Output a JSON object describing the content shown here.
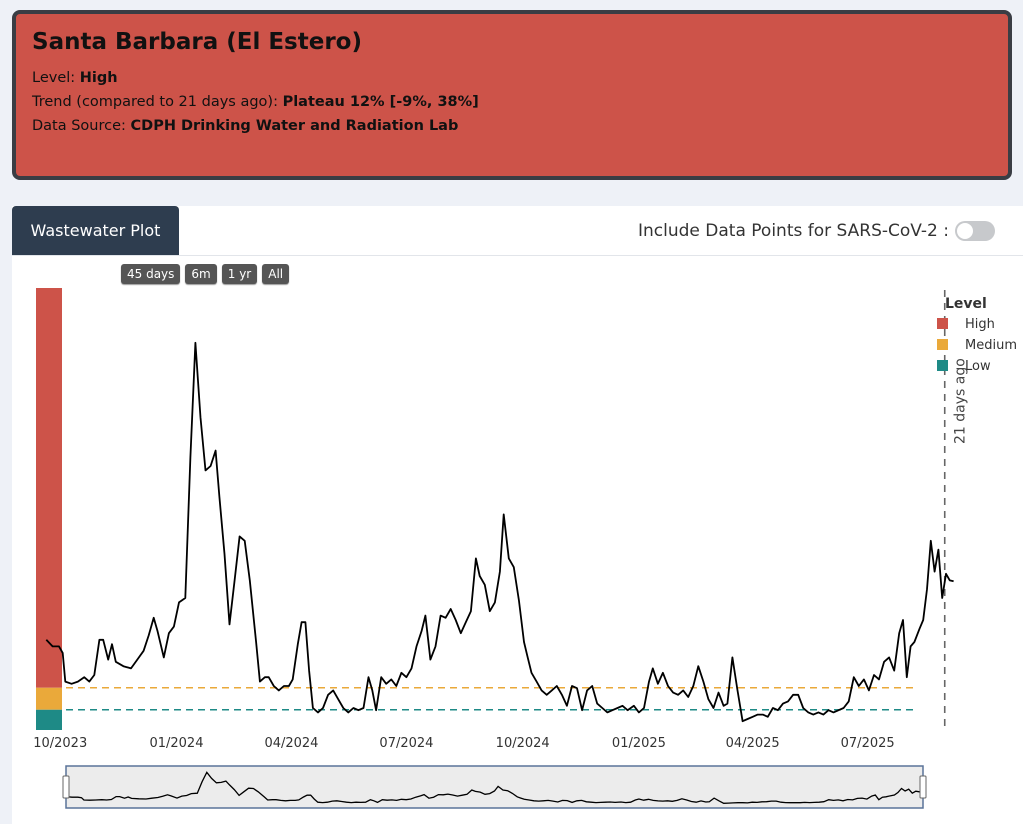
{
  "header": {
    "title": "Santa Barbara (El Estero)",
    "level_label": "Level: ",
    "level_value": "High",
    "trend_label": "Trend (compared to 21 days ago): ",
    "trend_value": "Plateau 12% [-9%, 38%]",
    "source_label": "Data Source: ",
    "source_value": "CDPH Drinking Water and Radiation Lab"
  },
  "tabs": {
    "wastewater": "Wastewater Plot"
  },
  "toggle": {
    "label": "Include Data Points for SARS-CoV-2 :",
    "on": false
  },
  "range_buttons": [
    "45 days",
    "6m",
    "1 yr",
    "All"
  ],
  "colors": {
    "high": "#cd5349",
    "medium": "#eaa93a",
    "low": "#1e8a86",
    "line": "#000000"
  },
  "chart_data": {
    "type": "line",
    "title": "",
    "xlabel": "",
    "ylabel": "",
    "x_ticks": [
      "10/2023",
      "01/2024",
      "04/2024",
      "07/2024",
      "10/2024",
      "01/2025",
      "04/2025",
      "07/2025"
    ],
    "x_range": [
      "2023-09-15",
      "2025-09-20"
    ],
    "y_range": [
      0,
      1
    ],
    "grid": false,
    "legend": {
      "title": "Level",
      "position": "top-right",
      "entries": [
        {
          "name": "High",
          "color": "#cd5349"
        },
        {
          "name": "Medium",
          "color": "#eaa93a"
        },
        {
          "name": "Low",
          "color": "#1e8a86"
        }
      ]
    },
    "thresholds": {
      "medium": 0.096,
      "low": 0.046
    },
    "annotation": {
      "text": "21 days ago",
      "x": "2025-08-31"
    },
    "series": [
      {
        "points": [
          [
            "2023-09-20",
            0.205
          ],
          [
            "2023-09-25",
            0.19
          ],
          [
            "2023-09-30",
            0.19
          ],
          [
            "2023-10-03",
            0.175
          ],
          [
            "2023-10-05",
            0.11
          ],
          [
            "2023-10-10",
            0.105
          ],
          [
            "2023-10-15",
            0.11
          ],
          [
            "2023-10-20",
            0.12
          ],
          [
            "2023-10-24",
            0.11
          ],
          [
            "2023-10-28",
            0.125
          ],
          [
            "2023-11-01",
            0.205
          ],
          [
            "2023-11-04",
            0.205
          ],
          [
            "2023-11-08",
            0.16
          ],
          [
            "2023-11-11",
            0.195
          ],
          [
            "2023-11-14",
            0.155
          ],
          [
            "2023-11-20",
            0.145
          ],
          [
            "2023-11-26",
            0.14
          ],
          [
            "2023-12-01",
            0.16
          ],
          [
            "2023-12-06",
            0.18
          ],
          [
            "2023-12-10",
            0.215
          ],
          [
            "2023-12-14",
            0.255
          ],
          [
            "2023-12-17",
            0.225
          ],
          [
            "2023-12-22",
            0.165
          ],
          [
            "2023-12-26",
            0.22
          ],
          [
            "2023-12-30",
            0.235
          ],
          [
            "2024-01-03",
            0.29
          ],
          [
            "2024-01-08",
            0.3
          ],
          [
            "2024-01-12",
            0.62
          ],
          [
            "2024-01-16",
            0.88
          ],
          [
            "2024-01-20",
            0.71
          ],
          [
            "2024-01-24",
            0.59
          ],
          [
            "2024-01-28",
            0.6
          ],
          [
            "2024-02-01",
            0.635
          ],
          [
            "2024-02-04",
            0.53
          ],
          [
            "2024-02-08",
            0.4
          ],
          [
            "2024-02-12",
            0.24
          ],
          [
            "2024-02-16",
            0.34
          ],
          [
            "2024-02-20",
            0.44
          ],
          [
            "2024-02-24",
            0.43
          ],
          [
            "2024-02-28",
            0.34
          ],
          [
            "2024-03-04",
            0.2
          ],
          [
            "2024-03-07",
            0.11
          ],
          [
            "2024-03-11",
            0.12
          ],
          [
            "2024-03-14",
            0.12
          ],
          [
            "2024-03-18",
            0.1
          ],
          [
            "2024-03-22",
            0.09
          ],
          [
            "2024-03-26",
            0.1
          ],
          [
            "2024-03-30",
            0.1
          ],
          [
            "2024-04-02",
            0.115
          ],
          [
            "2024-04-06",
            0.195
          ],
          [
            "2024-04-09",
            0.245
          ],
          [
            "2024-04-12",
            0.245
          ],
          [
            "2024-04-15",
            0.135
          ],
          [
            "2024-04-18",
            0.05
          ],
          [
            "2024-04-22",
            0.04
          ],
          [
            "2024-04-26",
            0.05
          ],
          [
            "2024-04-30",
            0.08
          ],
          [
            "2024-05-04",
            0.09
          ],
          [
            "2024-05-08",
            0.07
          ],
          [
            "2024-05-12",
            0.05
          ],
          [
            "2024-05-16",
            0.04
          ],
          [
            "2024-05-20",
            0.05
          ],
          [
            "2024-05-24",
            0.045
          ],
          [
            "2024-05-28",
            0.05
          ],
          [
            "2024-06-01",
            0.12
          ],
          [
            "2024-06-04",
            0.09
          ],
          [
            "2024-06-07",
            0.045
          ],
          [
            "2024-06-11",
            0.12
          ],
          [
            "2024-06-15",
            0.105
          ],
          [
            "2024-06-19",
            0.115
          ],
          [
            "2024-06-23",
            0.1
          ],
          [
            "2024-06-27",
            0.13
          ],
          [
            "2024-07-01",
            0.12
          ],
          [
            "2024-07-05",
            0.14
          ],
          [
            "2024-07-09",
            0.19
          ],
          [
            "2024-07-13",
            0.225
          ],
          [
            "2024-07-16",
            0.26
          ],
          [
            "2024-07-20",
            0.16
          ],
          [
            "2024-07-24",
            0.19
          ],
          [
            "2024-07-28",
            0.26
          ],
          [
            "2024-08-01",
            0.255
          ],
          [
            "2024-08-05",
            0.275
          ],
          [
            "2024-08-09",
            0.25
          ],
          [
            "2024-08-13",
            0.22
          ],
          [
            "2024-08-17",
            0.245
          ],
          [
            "2024-08-21",
            0.27
          ],
          [
            "2024-08-25",
            0.39
          ],
          [
            "2024-08-28",
            0.35
          ],
          [
            "2024-09-01",
            0.33
          ],
          [
            "2024-09-05",
            0.27
          ],
          [
            "2024-09-09",
            0.29
          ],
          [
            "2024-09-13",
            0.36
          ],
          [
            "2024-09-16",
            0.49
          ],
          [
            "2024-09-20",
            0.39
          ],
          [
            "2024-09-24",
            0.37
          ],
          [
            "2024-09-28",
            0.295
          ],
          [
            "2024-10-02",
            0.2
          ],
          [
            "2024-10-05",
            0.165
          ],
          [
            "2024-10-08",
            0.13
          ],
          [
            "2024-10-12",
            0.11
          ],
          [
            "2024-10-16",
            0.09
          ],
          [
            "2024-10-20",
            0.08
          ],
          [
            "2024-10-24",
            0.09
          ],
          [
            "2024-10-28",
            0.1
          ],
          [
            "2024-11-01",
            0.08
          ],
          [
            "2024-11-05",
            0.055
          ],
          [
            "2024-11-09",
            0.1
          ],
          [
            "2024-11-13",
            0.095
          ],
          [
            "2024-11-17",
            0.045
          ],
          [
            "2024-11-21",
            0.09
          ],
          [
            "2024-11-25",
            0.1
          ],
          [
            "2024-11-29",
            0.06
          ],
          [
            "2024-12-03",
            0.05
          ],
          [
            "2024-12-07",
            0.04
          ],
          [
            "2024-12-11",
            0.045
          ],
          [
            "2024-12-15",
            0.05
          ],
          [
            "2024-12-19",
            0.055
          ],
          [
            "2024-12-23",
            0.045
          ],
          [
            "2024-12-28",
            0.055
          ],
          [
            "2025-01-01",
            0.04
          ],
          [
            "2025-01-05",
            0.05
          ],
          [
            "2025-01-09",
            0.11
          ],
          [
            "2025-01-12",
            0.14
          ],
          [
            "2025-01-16",
            0.105
          ],
          [
            "2025-01-20",
            0.13
          ],
          [
            "2025-01-24",
            0.1
          ],
          [
            "2025-01-28",
            0.085
          ],
          [
            "2025-02-01",
            0.08
          ],
          [
            "2025-02-05",
            0.09
          ],
          [
            "2025-02-09",
            0.075
          ],
          [
            "2025-02-13",
            0.1
          ],
          [
            "2025-02-17",
            0.145
          ],
          [
            "2025-02-21",
            0.11
          ],
          [
            "2025-02-25",
            0.07
          ],
          [
            "2025-03-01",
            0.05
          ],
          [
            "2025-03-05",
            0.085
          ],
          [
            "2025-03-09",
            0.055
          ],
          [
            "2025-03-12",
            0.06
          ],
          [
            "2025-03-16",
            0.165
          ],
          [
            "2025-03-20",
            0.09
          ],
          [
            "2025-03-24",
            0.02
          ],
          [
            "2025-03-28",
            0.025
          ],
          [
            "2025-04-01",
            0.03
          ],
          [
            "2025-04-05",
            0.035
          ],
          [
            "2025-04-09",
            0.035
          ],
          [
            "2025-04-13",
            0.03
          ],
          [
            "2025-04-17",
            0.05
          ],
          [
            "2025-04-21",
            0.045
          ],
          [
            "2025-04-25",
            0.06
          ],
          [
            "2025-04-29",
            0.065
          ],
          [
            "2025-05-03",
            0.08
          ],
          [
            "2025-05-07",
            0.08
          ],
          [
            "2025-05-11",
            0.05
          ],
          [
            "2025-05-15",
            0.04
          ],
          [
            "2025-05-19",
            0.035
          ],
          [
            "2025-05-23",
            0.04
          ],
          [
            "2025-05-27",
            0.035
          ],
          [
            "2025-05-31",
            0.045
          ],
          [
            "2025-06-04",
            0.04
          ],
          [
            "2025-06-08",
            0.045
          ],
          [
            "2025-06-12",
            0.05
          ],
          [
            "2025-06-16",
            0.065
          ],
          [
            "2025-06-20",
            0.12
          ],
          [
            "2025-06-24",
            0.1
          ],
          [
            "2025-06-28",
            0.115
          ],
          [
            "2025-07-02",
            0.09
          ],
          [
            "2025-07-06",
            0.125
          ],
          [
            "2025-07-10",
            0.115
          ],
          [
            "2025-07-14",
            0.155
          ],
          [
            "2025-07-18",
            0.165
          ],
          [
            "2025-07-22",
            0.135
          ],
          [
            "2025-07-26",
            0.22
          ],
          [
            "2025-07-29",
            0.25
          ],
          [
            "2025-08-01",
            0.12
          ],
          [
            "2025-08-04",
            0.19
          ],
          [
            "2025-08-07",
            0.2
          ],
          [
            "2025-08-11",
            0.23
          ],
          [
            "2025-08-14",
            0.25
          ],
          [
            "2025-08-17",
            0.32
          ],
          [
            "2025-08-20",
            0.43
          ],
          [
            "2025-08-23",
            0.36
          ],
          [
            "2025-08-26",
            0.41
          ],
          [
            "2025-08-29",
            0.3
          ],
          [
            "2025-09-01",
            0.355
          ],
          [
            "2025-09-04",
            0.34
          ],
          [
            "2025-09-07",
            0.338
          ]
        ]
      }
    ]
  }
}
